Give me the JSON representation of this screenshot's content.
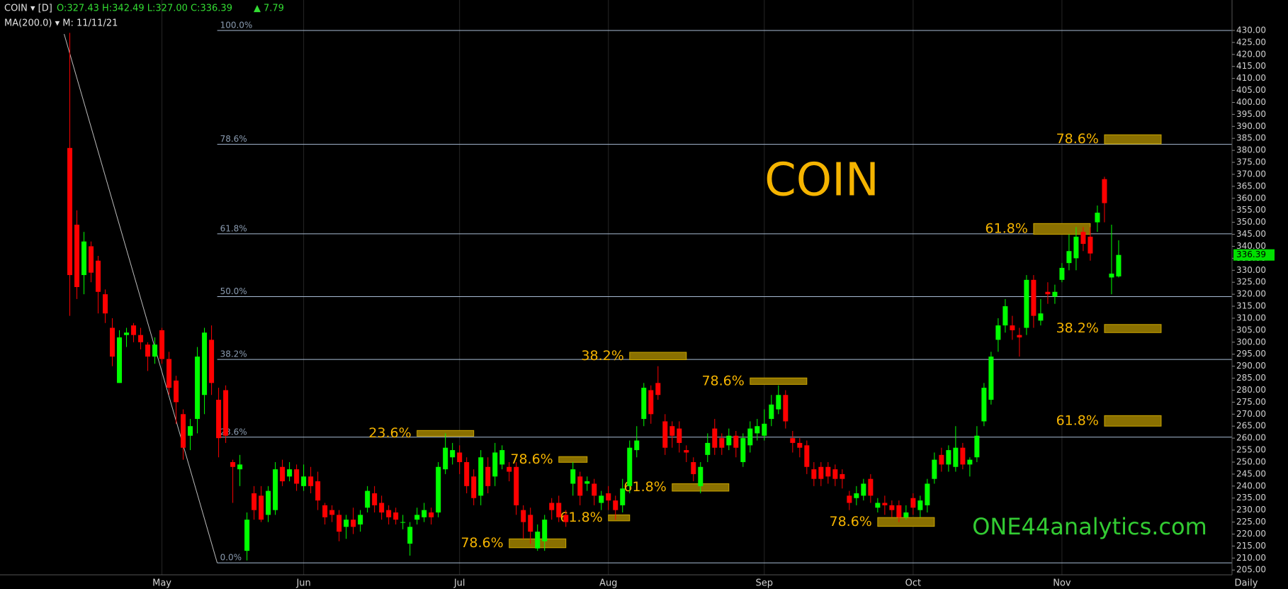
{
  "chart_data": {
    "type": "candlestick",
    "title": "COIN",
    "watermark": "ONE44analytics.com",
    "header": {
      "symbol": "COIN ▾ [D]",
      "quote": "O:327.43 H:342.49 L:327.00 C:336.39",
      "change_symbol": "▲",
      "change": 7.79,
      "indicator": "MA(200.0) ▾ M: 11/11/21"
    },
    "interval": "Daily",
    "up_color": "#00ff00",
    "down_color": "#ff0000",
    "open": [
      381,
      349,
      328,
      340,
      334,
      320,
      306,
      283,
      303,
      307,
      303,
      299,
      294,
      305,
      293,
      284,
      270,
      261,
      268,
      278,
      301,
      276,
      280,
      250,
      247,
      213,
      237,
      236,
      228,
      230,
      248,
      244,
      247,
      240,
      244,
      242,
      232,
      230,
      228,
      223,
      226,
      224,
      231,
      237,
      233,
      230,
      229,
      225,
      216,
      226,
      227,
      229,
      229,
      247,
      252,
      254,
      250,
      244,
      236,
      248,
      244,
      249,
      248,
      248,
      230,
      228,
      214,
      217,
      233,
      233,
      228,
      241,
      244,
      241,
      241,
      233,
      237,
      234,
      232,
      240,
      255,
      268,
      280,
      283,
      267,
      265,
      264,
      255,
      250,
      240,
      253,
      264,
      260,
      257,
      261,
      250,
      257,
      262,
      261,
      268,
      272,
      278,
      260,
      258,
      257,
      247,
      248,
      248,
      247,
      245,
      236,
      235,
      236,
      243,
      231,
      233,
      232,
      232,
      227,
      235,
      230,
      232,
      243,
      253,
      249,
      248,
      256,
      249,
      252,
      267,
      276,
      301,
      307,
      307,
      303,
      306,
      326,
      309,
      321,
      319,
      326,
      333,
      335,
      346,
      344,
      350,
      368,
      327,
      327.43
    ],
    "high": [
      429,
      355,
      346,
      342,
      336,
      322,
      310,
      305,
      306,
      308,
      306,
      300,
      302,
      306,
      296,
      286,
      272,
      268,
      298,
      306,
      307,
      281,
      282,
      251,
      253,
      229,
      240,
      240,
      240,
      250,
      251,
      250,
      249,
      249,
      248,
      246,
      233,
      232,
      230,
      228,
      231,
      230,
      240,
      240,
      236,
      232,
      231,
      228,
      225,
      231,
      233,
      231,
      250,
      262,
      258,
      257,
      252,
      247,
      255,
      252,
      258,
      257,
      250,
      250,
      232,
      231,
      224,
      228,
      235,
      236,
      230,
      250,
      246,
      244,
      243,
      238,
      240,
      236,
      243,
      259,
      265,
      283,
      282,
      290,
      270,
      267,
      267,
      257,
      252,
      250,
      262,
      268,
      262,
      264,
      263,
      262,
      267,
      268,
      272,
      278,
      282,
      280,
      263,
      260,
      259,
      250,
      250,
      250,
      249,
      247,
      238,
      240,
      243,
      245,
      235,
      236,
      234,
      234,
      232,
      237,
      236,
      243,
      254,
      256,
      257,
      265,
      258,
      252,
      265,
      283,
      296,
      310,
      318,
      311,
      306,
      328,
      328,
      318,
      325,
      324,
      333,
      345,
      348,
      348,
      348,
      357,
      369,
      349,
      342.49
    ],
    "low": [
      311,
      318,
      320,
      325,
      312,
      308,
      290,
      283,
      298,
      300,
      297,
      288,
      291,
      291,
      278,
      266,
      251,
      255,
      262,
      270,
      278,
      252,
      258,
      233,
      240,
      209,
      226,
      225,
      225,
      228,
      240,
      242,
      238,
      238,
      237,
      230,
      224,
      225,
      217,
      218,
      220,
      221,
      229,
      229,
      226,
      224,
      224,
      222,
      211,
      224,
      225,
      224,
      227,
      245,
      249,
      245,
      237,
      232,
      232,
      237,
      240,
      247,
      242,
      228,
      218,
      216,
      213,
      213,
      226,
      225,
      223,
      236,
      232,
      238,
      232,
      230,
      230,
      226,
      229,
      237,
      252,
      265,
      266,
      276,
      253,
      256,
      254,
      250,
      242,
      237,
      250,
      253,
      253,
      255,
      252,
      248,
      254,
      259,
      259,
      265,
      270,
      264,
      254,
      252,
      245,
      240,
      240,
      241,
      240,
      239,
      230,
      232,
      234,
      233,
      229,
      228,
      227,
      225,
      226,
      228,
      227,
      229,
      241,
      246,
      246,
      246,
      247,
      244,
      250,
      265,
      274,
      296,
      304,
      301,
      294,
      303,
      306,
      307,
      316,
      316,
      325,
      330,
      330,
      338,
      334,
      346,
      350,
      320,
      327
    ],
    "close": [
      328,
      323,
      342,
      329,
      321,
      312,
      294,
      302,
      304,
      303,
      300,
      294,
      299,
      293,
      281,
      275,
      256,
      265,
      294,
      304,
      283,
      260,
      261,
      248,
      249,
      226,
      230,
      226,
      238,
      247,
      242,
      247,
      241,
      244,
      240,
      234,
      227,
      228,
      221,
      226,
      223,
      228,
      238,
      232,
      229,
      227,
      226,
      225,
      223,
      228,
      230,
      227,
      248,
      256,
      255,
      250,
      240,
      235,
      252,
      240,
      254,
      255,
      246,
      232,
      225,
      221,
      221,
      226,
      230,
      227,
      225,
      247,
      236,
      242,
      236,
      236,
      234,
      230,
      239,
      256,
      259,
      281,
      270,
      278,
      256,
      261,
      258,
      254,
      245,
      248,
      258,
      256,
      256,
      261,
      256,
      260,
      264,
      265,
      266,
      274,
      278,
      267,
      258,
      256,
      248,
      243,
      243,
      244,
      243,
      243,
      233,
      237,
      241,
      236,
      233,
      232,
      230,
      227,
      229,
      231,
      234,
      241,
      251,
      249,
      255,
      256,
      249,
      251,
      261,
      281,
      294,
      307,
      315,
      305,
      302,
      326,
      311,
      312,
      320,
      321,
      331,
      338,
      344,
      341,
      337,
      354,
      358,
      328.6,
      336.39
    ],
    "xlim": [
      -9.85,
      164
    ],
    "xticks": [
      {
        "value": 13,
        "label": "May"
      },
      {
        "value": 33,
        "label": "Jun"
      },
      {
        "value": 55,
        "label": "Jul"
      },
      {
        "value": 76,
        "label": "Aug"
      },
      {
        "value": 98,
        "label": "Sep"
      },
      {
        "value": 119,
        "label": "Oct"
      },
      {
        "value": 140,
        "label": "Nov"
      }
    ],
    "ylim": [
      203,
      442.7
    ],
    "yticks": [
      {
        "value": 205,
        "label": "205.00"
      },
      {
        "value": 210,
        "label": "210.00"
      },
      {
        "value": 215,
        "label": "215.00"
      },
      {
        "value": 220,
        "label": "220.00"
      },
      {
        "value": 225,
        "label": "225.00"
      },
      {
        "value": 230,
        "label": "230.00"
      },
      {
        "value": 235,
        "label": "235.00"
      },
      {
        "value": 240,
        "label": "240.00"
      },
      {
        "value": 245,
        "label": "245.00"
      },
      {
        "value": 250,
        "label": "250.00"
      },
      {
        "value": 255,
        "label": "255.00"
      },
      {
        "value": 260,
        "label": "260.00"
      },
      {
        "value": 265,
        "label": "265.00"
      },
      {
        "value": 270,
        "label": "270.00"
      },
      {
        "value": 275,
        "label": "275.00"
      },
      {
        "value": 280,
        "label": "280.00"
      },
      {
        "value": 285,
        "label": "285.00"
      },
      {
        "value": 290,
        "label": "290.00"
      },
      {
        "value": 295,
        "label": "295.00"
      },
      {
        "value": 300,
        "label": "300.00"
      },
      {
        "value": 305,
        "label": "305.00"
      },
      {
        "value": 310,
        "label": "310.00"
      },
      {
        "value": 315,
        "label": "315.00"
      },
      {
        "value": 320,
        "label": "320.00"
      },
      {
        "value": 325,
        "label": "325.00"
      },
      {
        "value": 330,
        "label": "330.00"
      },
      {
        "value": 335,
        "label": "335.00"
      },
      {
        "value": 340,
        "label": "340.00"
      },
      {
        "value": 345,
        "label": "345.00"
      },
      {
        "value": 350,
        "label": "350.00"
      },
      {
        "value": 355,
        "label": "355.00"
      },
      {
        "value": 360,
        "label": "360.00"
      },
      {
        "value": 365,
        "label": "365.00"
      },
      {
        "value": 370,
        "label": "370.00"
      },
      {
        "value": 375,
        "label": "375.00"
      },
      {
        "value": 380,
        "label": "380.00"
      },
      {
        "value": 385,
        "label": "385.00"
      },
      {
        "value": 390,
        "label": "390.00"
      },
      {
        "value": 395,
        "label": "395.00"
      },
      {
        "value": 400,
        "label": "400.00"
      },
      {
        "value": 405,
        "label": "405.00"
      },
      {
        "value": 410,
        "label": "410.00"
      },
      {
        "value": 415,
        "label": "415.00"
      },
      {
        "value": 420,
        "label": "420.00"
      },
      {
        "value": 425,
        "label": "425.00"
      },
      {
        "value": 430,
        "label": "430.00"
      }
    ],
    "trend_line": {
      "x": [
        -0.8,
        20.8
      ],
      "y": [
        428.5,
        208
      ]
    },
    "fib_levels": [
      {
        "value": 430,
        "name": "100.0%"
      },
      {
        "value": 382.5,
        "name": "78.6%"
      },
      {
        "value": 345.2,
        "name": "61.8%"
      },
      {
        "value": 319,
        "name": "50.0%"
      },
      {
        "value": 292.8,
        "name": "38.2%"
      },
      {
        "value": 260.4,
        "name": "23.6%"
      },
      {
        "value": 208,
        "name": "0.0%"
      }
    ],
    "zones": [
      {
        "label": "23.6%",
        "x": [
          49,
          57
        ],
        "y": [
          260.8,
          263.2
        ]
      },
      {
        "label": "78.6%",
        "x": [
          69,
          73
        ],
        "y": [
          249.9,
          252.3
        ]
      },
      {
        "label": "78.6%",
        "x": [
          62,
          70
        ],
        "y": [
          214.3,
          218
        ]
      },
      {
        "label": "61.8%",
        "x": [
          76,
          79
        ],
        "y": [
          225.5,
          228
        ]
      },
      {
        "label": "38.2%",
        "x": [
          79,
          87
        ],
        "y": [
          292.7,
          295.8
        ]
      },
      {
        "label": "61.8%",
        "x": [
          85,
          93
        ],
        "y": [
          237.9,
          241
        ]
      },
      {
        "label": "78.6%",
        "x": [
          96,
          104
        ],
        "y": [
          282.4,
          285.1
        ]
      },
      {
        "label": "78.6%",
        "x": [
          114,
          122
        ],
        "y": [
          223.2,
          226.9
        ]
      },
      {
        "label": "61.8%",
        "x": [
          136,
          144
        ],
        "y": [
          345,
          349.5
        ]
      },
      {
        "label": "78.6%",
        "x": [
          146,
          154
        ],
        "y": [
          382.7,
          386.5
        ]
      },
      {
        "label": "38.2%",
        "x": [
          146,
          154
        ],
        "y": [
          304,
          307.4
        ]
      },
      {
        "label": "61.8%",
        "x": [
          146,
          154
        ],
        "y": [
          265,
          269.4
        ]
      }
    ]
  }
}
